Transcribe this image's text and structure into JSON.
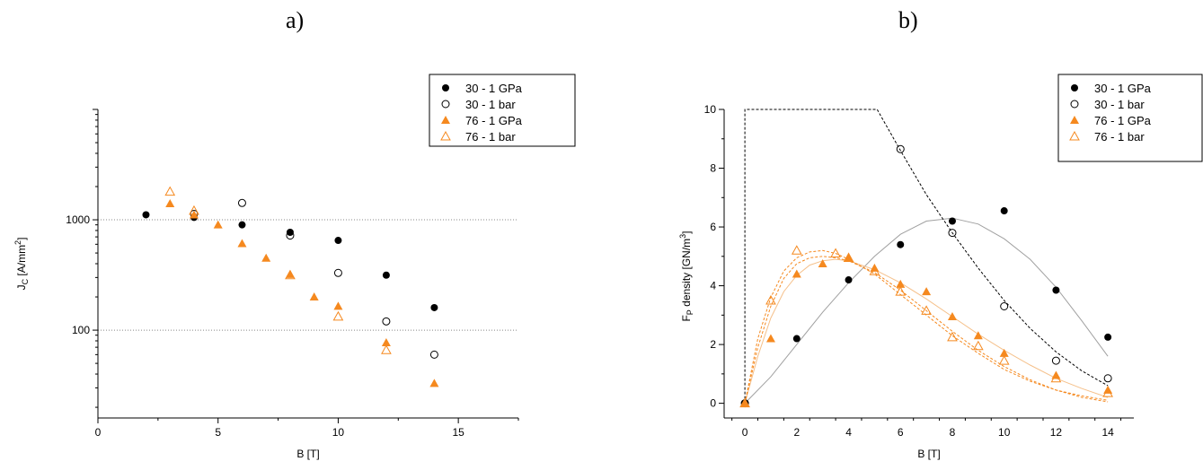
{
  "panels": {
    "a": "a)",
    "b": "b)"
  },
  "legend_labels": [
    "30 - 1 GPa",
    "30 - 1 bar",
    "76 - 1 GPa",
    "76 - 1 bar"
  ],
  "chart_data": [
    {
      "type": "scatter",
      "panel": "a)",
      "xlabel": "B [T]",
      "ylabel": "J_C [A/mm²]",
      "xlim": [
        0,
        17.5
      ],
      "ylim": [
        16,
        10000
      ],
      "yscale": "log",
      "xticks": [
        0,
        5,
        10,
        15
      ],
      "yticks": [
        100,
        1000
      ],
      "grid": "horizontal dotted lines at 100 and 1000",
      "legend": "top-right",
      "series": [
        {
          "name": "30 - 1 GPa",
          "marker": "filled-circle",
          "color": "#000000",
          "x": [
            2,
            4,
            6,
            8,
            10,
            12,
            14
          ],
          "y": [
            1110,
            1050,
            900,
            770,
            650,
            315,
            160
          ]
        },
        {
          "name": "30 - 1 bar",
          "marker": "open-circle",
          "color": "#000000",
          "x": [
            4,
            6,
            8,
            10,
            12,
            14
          ],
          "y": [
            1130,
            1420,
            720,
            330,
            120,
            60
          ]
        },
        {
          "name": "76 - 1 GPa",
          "marker": "filled-triangle",
          "color": "#f5891f",
          "x": [
            3,
            4,
            5,
            6,
            7,
            8,
            9,
            10,
            12,
            14
          ],
          "y": [
            1400,
            1110,
            900,
            610,
            450,
            320,
            200,
            165,
            77,
            33
          ]
        },
        {
          "name": "76 - 1 bar",
          "marker": "open-triangle",
          "color": "#f5891f",
          "x": [
            3,
            4,
            8,
            10,
            12
          ],
          "y": [
            1800,
            1210,
            315,
            133,
            66
          ]
        }
      ]
    },
    {
      "type": "scatter",
      "panel": "b)",
      "xlabel": "B [T]",
      "ylabel": "F_P density [GN/m³]",
      "xlim": [
        -0.8,
        15
      ],
      "ylim": [
        -0.5,
        10
      ],
      "xticks": [
        0,
        2,
        4,
        6,
        8,
        10,
        12,
        14
      ],
      "yticks": [
        0,
        2,
        4,
        6,
        8,
        10
      ],
      "grid": false,
      "legend": "top-right",
      "series": [
        {
          "name": "30 - 1 GPa",
          "marker": "filled-circle",
          "color": "#000000",
          "x": [
            0,
            2,
            4,
            6,
            8,
            10,
            12,
            14
          ],
          "y": [
            0,
            2.2,
            4.2,
            5.4,
            6.2,
            6.55,
            3.85,
            2.25
          ]
        },
        {
          "name": "30 - 1 bar",
          "marker": "open-circle",
          "color": "#000000",
          "x": [
            0,
            6,
            8,
            10,
            12,
            14
          ],
          "y": [
            0,
            8.65,
            5.8,
            3.3,
            1.45,
            0.85
          ]
        },
        {
          "name": "76 - 1 GPa",
          "marker": "filled-triangle",
          "color": "#f5891f",
          "x": [
            0,
            1,
            2,
            3,
            4,
            5,
            6,
            7,
            8,
            9,
            10,
            12,
            14
          ],
          "y": [
            0,
            2.2,
            4.4,
            4.75,
            4.95,
            4.6,
            4.05,
            3.8,
            2.95,
            2.3,
            1.7,
            0.95,
            0.45
          ]
        },
        {
          "name": "76 - 1 bar",
          "marker": "open-triangle",
          "color": "#f5891f",
          "x": [
            0,
            1,
            2,
            3.5,
            4,
            5,
            6,
            7,
            8,
            9,
            10,
            12,
            14
          ],
          "y": [
            0,
            3.5,
            5.2,
            5.1,
            4.95,
            4.5,
            3.8,
            3.15,
            2.25,
            1.95,
            1.45,
            0.85,
            0.35
          ]
        }
      ],
      "fit_curves": [
        {
          "for": "30 - 1 GPa",
          "style": "solid",
          "color": "#a0a0a0",
          "x": [
            0,
            1,
            2,
            3,
            4,
            5,
            6,
            7,
            8,
            9,
            10,
            11,
            12,
            13,
            14
          ],
          "y": [
            0,
            0.9,
            2.0,
            3.1,
            4.1,
            5.0,
            5.75,
            6.2,
            6.3,
            6.1,
            5.6,
            4.9,
            3.95,
            2.8,
            1.6
          ]
        },
        {
          "for": "30 - 1 bar",
          "style": "dashed",
          "color": "#000000",
          "x": [
            0,
            0,
            5.1,
            6,
            7,
            8,
            9,
            10,
            11,
            12,
            13,
            14
          ],
          "y": [
            0,
            10,
            10,
            8.6,
            7.1,
            5.8,
            4.6,
            3.5,
            2.55,
            1.75,
            1.1,
            0.6
          ]
        },
        {
          "for": "76 - 1 GPa",
          "style": "solid",
          "color": "#f5c08a",
          "x": [
            0,
            0.5,
            1,
            1.5,
            2,
            2.5,
            3,
            3.5,
            4,
            5,
            6,
            7,
            8,
            9,
            10,
            11,
            12,
            13,
            14
          ],
          "y": [
            0,
            1.6,
            2.9,
            3.8,
            4.35,
            4.7,
            4.85,
            4.9,
            4.85,
            4.55,
            4.1,
            3.55,
            2.95,
            2.35,
            1.8,
            1.3,
            0.85,
            0.5,
            0.2
          ]
        },
        {
          "for": "76 - 1 bar",
          "style": "dashed",
          "color": "#f5891f",
          "x": [
            0,
            0.5,
            1,
            1.5,
            2,
            2.5,
            3,
            3.5,
            4,
            5,
            6,
            7,
            8,
            9,
            10,
            11,
            12,
            13,
            14
          ],
          "y": [
            0,
            2.2,
            3.6,
            4.5,
            4.95,
            5.15,
            5.2,
            5.1,
            4.9,
            4.4,
            3.7,
            3.0,
            2.3,
            1.7,
            1.15,
            0.75,
            0.45,
            0.25,
            0.1
          ]
        },
        {
          "for": "76 - 1 GPa",
          "style": "dashed",
          "color": "#f5891f",
          "x": [
            0,
            0.5,
            1,
            1.5,
            2,
            2.5,
            3,
            3.5,
            4,
            5,
            6,
            7,
            8,
            9,
            10,
            11,
            12,
            13,
            14
          ],
          "y": [
            0,
            1.9,
            3.3,
            4.25,
            4.75,
            4.95,
            5.0,
            4.95,
            4.85,
            4.45,
            3.85,
            3.15,
            2.45,
            1.8,
            1.25,
            0.8,
            0.45,
            0.2,
            0.05
          ]
        }
      ]
    }
  ]
}
